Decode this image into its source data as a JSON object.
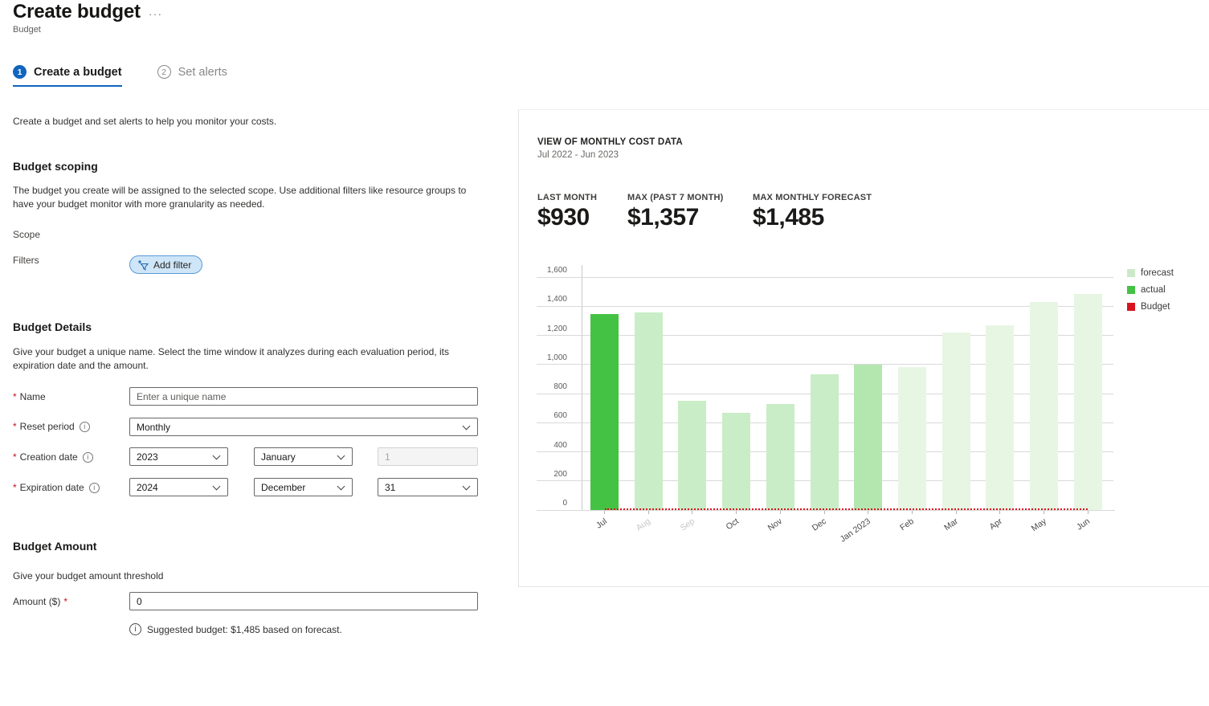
{
  "page": {
    "title": "Create budget",
    "subtitle": "Budget",
    "menu_ellipsis": "···"
  },
  "ui": {
    "required_marker": "*",
    "info_glyph": "i"
  },
  "tabs": [
    {
      "number": "1",
      "label": "Create a budget",
      "active": true
    },
    {
      "number": "2",
      "label": "Set alerts",
      "active": false
    }
  ],
  "intro": "Create a budget and set alerts to help you monitor your costs.",
  "scoping": {
    "heading": "Budget scoping",
    "description": "The budget you create will be assigned to the selected scope. Use additional filters like resource groups to have your budget monitor with more granularity as needed.",
    "scope_label": "Scope",
    "filters_label": "Filters",
    "add_filter_label": "Add filter"
  },
  "details": {
    "heading": "Budget Details",
    "description": "Give your budget a unique name. Select the time window it analyzes during each evaluation period, its expiration date and the amount.",
    "name": {
      "label": "Name",
      "placeholder": "Enter a unique name"
    },
    "reset_period": {
      "label": "Reset period",
      "value": "Monthly"
    },
    "creation_date": {
      "label": "Creation date",
      "year": "2023",
      "month": "January",
      "day": "1"
    },
    "expiration_date": {
      "label": "Expiration date",
      "year": "2024",
      "month": "December",
      "day": "31"
    }
  },
  "amount_section": {
    "heading": "Budget Amount",
    "description": "Give your budget amount threshold",
    "amount_label": "Amount ($)",
    "amount_value": "0",
    "suggestion": "Suggested budget: $1,485 based on forecast."
  },
  "panel": {
    "title": "VIEW OF MONTHLY COST DATA",
    "subtitle": "Jul 2022 - Jun 2023",
    "stats": [
      {
        "label": "LAST MONTH",
        "value": "$930"
      },
      {
        "label": "MAX (PAST 7 MONTH)",
        "value": "$1,357"
      },
      {
        "label": "MAX MONTHLY FORECAST",
        "value": "$1,485"
      }
    ]
  },
  "chart_data": {
    "type": "bar",
    "title": "VIEW OF MONTHLY COST DATA",
    "subtitle": "Jul 2022 - Jun 2023",
    "xlabel": "",
    "ylabel": "",
    "ylim": [
      0,
      1645
    ],
    "grid": true,
    "legend_position": "right",
    "yticks": [
      {
        "value": 0,
        "label": "0"
      },
      {
        "value": 200,
        "label": "200"
      },
      {
        "value": 400,
        "label": "400"
      },
      {
        "value": 600,
        "label": "600"
      },
      {
        "value": 800,
        "label": "800"
      },
      {
        "value": 1000,
        "label": "1,000"
      },
      {
        "value": 1200,
        "label": "1,200"
      },
      {
        "value": 1400,
        "label": "1,400"
      },
      {
        "value": 1600,
        "label": "1,600"
      }
    ],
    "bars": [
      {
        "month": "Jul",
        "value": 1345,
        "series": "actual",
        "color": "actual",
        "muted": false
      },
      {
        "month": "Aug",
        "value": 1357,
        "series": "forecast",
        "color": "forecast_medium",
        "muted": true
      },
      {
        "month": "Sep",
        "value": 750,
        "series": "forecast",
        "color": "forecast_medium",
        "muted": true
      },
      {
        "month": "Oct",
        "value": 670,
        "series": "forecast",
        "color": "forecast_medium",
        "muted": false
      },
      {
        "month": "Nov",
        "value": 730,
        "series": "forecast",
        "color": "forecast_medium",
        "muted": false
      },
      {
        "month": "Dec",
        "value": 930,
        "series": "forecast",
        "color": "forecast_medium",
        "muted": false
      },
      {
        "month": "Jan 2023",
        "value": 1000,
        "series": "forecast",
        "color": "forecast_near",
        "muted": false
      },
      {
        "month": "Feb",
        "value": 980,
        "series": "forecast",
        "color": "forecast_light",
        "muted": false
      },
      {
        "month": "Mar",
        "value": 1220,
        "series": "forecast",
        "color": "forecast_light",
        "muted": false
      },
      {
        "month": "Apr",
        "value": 1270,
        "series": "forecast",
        "color": "forecast_light",
        "muted": false
      },
      {
        "month": "May",
        "value": 1430,
        "series": "forecast",
        "color": "forecast_light",
        "muted": false
      },
      {
        "month": "Jun",
        "value": 1485,
        "series": "forecast",
        "color": "forecast_light",
        "muted": false
      }
    ],
    "budget_line": {
      "label": "Budget",
      "value": 0
    },
    "legend": [
      {
        "label": "forecast",
        "color": "legend_forecast"
      },
      {
        "label": "actual",
        "color": "actual"
      },
      {
        "label": "Budget",
        "color": "budget"
      }
    ]
  },
  "colors": {
    "accent_blue": "#1065bd",
    "required_red": "#c50f1f",
    "actual": "#44c244",
    "forecast_medium": "#c9edc6",
    "forecast_near": "#b4e7b0",
    "forecast_light": "#e7f6e3",
    "legend_forecast": "#cbe9c8",
    "budget": "#d8131f",
    "filter_button_bg": "#cfe6f8",
    "filter_button_border": "#5a9bd5"
  }
}
